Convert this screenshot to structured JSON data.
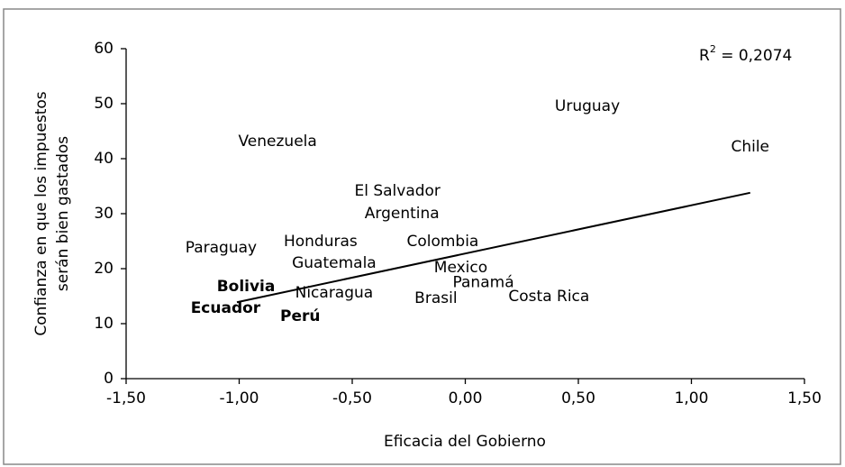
{
  "chart_data": {
    "type": "scatter",
    "x_label": "Eficacia del Gobierno",
    "y_label": [
      "Confianza en que los impuestos",
      "serán bien gastados"
    ],
    "annotation": {
      "base": "R",
      "sup": "2",
      "rest": " = 0,2074"
    },
    "points": {
      "names": [
        "Venezuela",
        "Uruguay",
        "Chile",
        "El Salvador",
        "Argentina",
        "Paraguay",
        "Honduras",
        "Colombia",
        "Guatemala",
        "Mexico",
        "Panamá",
        "Bolivia",
        "Nicaragua",
        "Brasil",
        "Costa Rica",
        "Ecuador",
        "Perú"
      ],
      "x": [
        -0.83,
        0.54,
        1.26,
        -0.3,
        -0.28,
        -1.08,
        -0.64,
        -0.1,
        -0.58,
        -0.02,
        0.08,
        -0.97,
        -0.58,
        -0.13,
        0.37,
        -1.06,
        -0.73
      ],
      "values": [
        43.1,
        49.5,
        42.1,
        34.1,
        30.0,
        23.8,
        24.9,
        24.9,
        21.0,
        20.2,
        17.5,
        16.7,
        15.6,
        14.6,
        14.9,
        12.8,
        11.3
      ],
      "bold": [
        false,
        false,
        false,
        false,
        false,
        false,
        false,
        false,
        false,
        false,
        false,
        true,
        false,
        false,
        false,
        true,
        true
      ],
      "color": "#000000"
    },
    "trendline": {
      "x": [
        -1.01,
        1.26
      ],
      "values": [
        13.9,
        33.8
      ],
      "color": "#000000"
    },
    "xlim": [
      -1.5,
      1.5
    ],
    "xticks": [
      {
        "value": -1.5,
        "label": "-1,50"
      },
      {
        "value": -1.0,
        "label": "-1,00"
      },
      {
        "value": -0.5,
        "label": "-0,50"
      },
      {
        "value": 0,
        "label": "0,00"
      },
      {
        "value": 0.5,
        "label": "0,50"
      },
      {
        "value": 1.0,
        "label": "1,00"
      },
      {
        "value": 1.5,
        "label": "1,50"
      }
    ],
    "ylim": [
      0,
      60
    ],
    "yticks": [
      0,
      10,
      20,
      30,
      40,
      50,
      60
    ],
    "grid": false
  }
}
